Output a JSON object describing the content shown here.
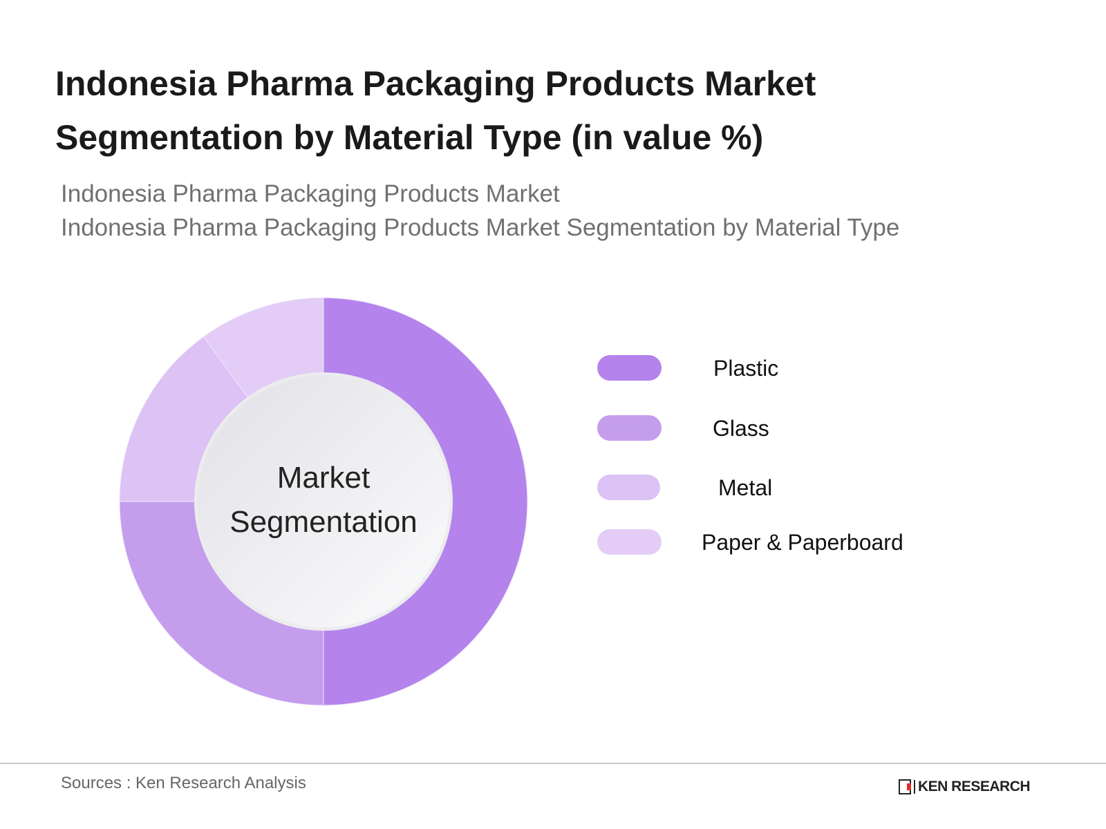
{
  "title_lines": [
    "Indonesia Pharma Packaging Products Market",
    "Segmentation by Material Type  (in value %)"
  ],
  "subtitle_lines": [
    "Indonesia Pharma Packaging Products Market",
    "Indonesia Pharma Packaging Products Market Segmentation by Material Type"
  ],
  "chart_data": {
    "type": "pie",
    "variant": "donut",
    "title": "Indonesia Pharma Packaging Products Market Segmentation by Material Type  (in value %)",
    "center_label_lines": [
      "Market",
      "Segmentation"
    ],
    "categories": [
      "Plastic",
      "Glass",
      "Metal",
      "Paper & Paperboard"
    ],
    "values": [
      50,
      25,
      15,
      10
    ],
    "unit": "%",
    "colors": [
      "#b483ec",
      "#c59ded",
      "#dcc2f5",
      "#e3cdf7"
    ],
    "legend_position": "right"
  },
  "footer": {
    "source": "Sources : Ken Research Analysis",
    "logo_text": "KEN RESEARCH"
  }
}
